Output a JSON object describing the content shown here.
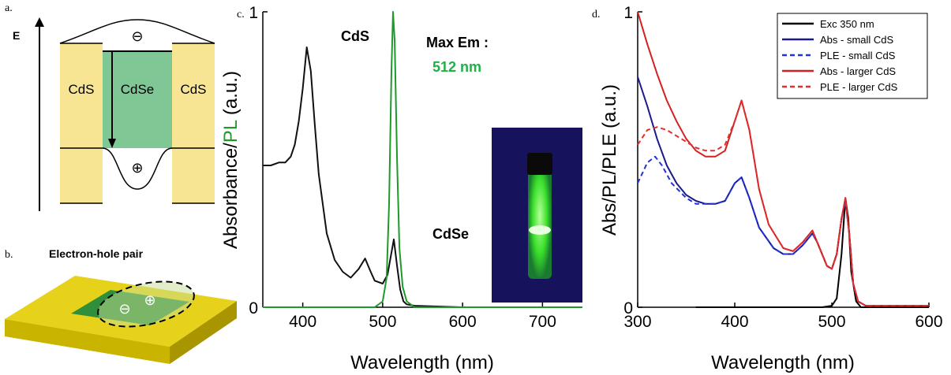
{
  "diagram_a": {
    "label": "a.",
    "axis_label": "E",
    "regions": [
      "CdS",
      "CdSe",
      "CdS"
    ],
    "electron": "⊖",
    "hole": "⊕"
  },
  "diagram_b": {
    "label": "b.",
    "title": "Electron-hole pair",
    "electron": "⊖",
    "hole": "⊕"
  },
  "chart_data": [
    {
      "type": "line",
      "panel_label": "c.",
      "xlabel": "Wavelength (nm)",
      "ylabel": [
        "Absorbance/",
        "PL",
        " (a.u.)"
      ],
      "annotations": [
        "CdS",
        "CdSe",
        "Max Em :",
        "512 nm"
      ],
      "xlim": [
        350,
        750
      ],
      "xticks": [
        400,
        500,
        600,
        700
      ],
      "ylim": [
        0,
        1
      ],
      "yticks": [
        0,
        1
      ],
      "series": [
        {
          "color": "#111111",
          "dash": false,
          "x": [
            350,
            360,
            370,
            378,
            385,
            390,
            395,
            400,
            405,
            410,
            415,
            420,
            430,
            440,
            450,
            460,
            470,
            478,
            485,
            490,
            500,
            506,
            510,
            514,
            518,
            522,
            526,
            530,
            540,
            600,
            750
          ],
          "values": [
            0.48,
            0.48,
            0.49,
            0.49,
            0.51,
            0.55,
            0.63,
            0.74,
            0.88,
            0.8,
            0.62,
            0.45,
            0.25,
            0.16,
            0.12,
            0.1,
            0.13,
            0.165,
            0.12,
            0.09,
            0.08,
            0.11,
            0.17,
            0.23,
            0.14,
            0.06,
            0.02,
            0.01,
            0.005,
            0,
            0
          ]
        },
        {
          "color": "#1e9a2c",
          "dash": false,
          "x": [
            350,
            490,
            500,
            505,
            508,
            511,
            513,
            515,
            518,
            521,
            525,
            530,
            540,
            750
          ],
          "values": [
            0,
            0,
            0.02,
            0.1,
            0.35,
            0.8,
            1.0,
            0.9,
            0.5,
            0.2,
            0.07,
            0.02,
            0,
            0
          ]
        }
      ]
    },
    {
      "type": "line",
      "panel_label": "d.",
      "xlabel": "Wavelength (nm)",
      "ylabel": [
        "Abs/PL/PLE (a.u.)"
      ],
      "xlim": [
        300,
        600
      ],
      "xticks": [
        300,
        400,
        500,
        600
      ],
      "ylim": [
        0,
        1
      ],
      "yticks": [
        0,
        1
      ],
      "legend": "upper right",
      "series": [
        {
          "name": "Exc 350 nm",
          "color": "#000000",
          "dash": false,
          "x": [
            360,
            490,
            500,
            505,
            510,
            514,
            517,
            520,
            525,
            530,
            600
          ],
          "values": [
            0,
            0,
            0.005,
            0.03,
            0.18,
            0.37,
            0.3,
            0.12,
            0.02,
            0,
            0
          ]
        },
        {
          "name": "Abs - small CdS",
          "color": "#1a1a8c",
          "dash": false,
          "x": [
            300,
            310,
            320,
            330,
            340,
            350,
            360,
            370,
            380,
            390,
            400,
            407,
            415,
            425,
            440,
            450,
            460,
            470,
            480,
            485,
            495,
            500,
            505,
            510,
            514,
            518,
            522,
            527,
            535,
            600
          ],
          "values": [
            0.78,
            0.68,
            0.57,
            0.48,
            0.42,
            0.38,
            0.36,
            0.35,
            0.35,
            0.36,
            0.42,
            0.44,
            0.37,
            0.27,
            0.2,
            0.18,
            0.18,
            0.21,
            0.25,
            0.22,
            0.14,
            0.13,
            0.18,
            0.3,
            0.36,
            0.25,
            0.08,
            0.02,
            0.005,
            0.005
          ]
        },
        {
          "name": "PLE - small CdS",
          "color": "#2233dd",
          "dash": true,
          "x": [
            300,
            310,
            318,
            325,
            335,
            350,
            360,
            370,
            380,
            390,
            400,
            407,
            415,
            425,
            440,
            450,
            460,
            470,
            480,
            485,
            495,
            500,
            505,
            510,
            514,
            518,
            522,
            527,
            535,
            600
          ],
          "values": [
            0.42,
            0.49,
            0.51,
            0.48,
            0.42,
            0.37,
            0.35,
            0.35,
            0.35,
            0.36,
            0.42,
            0.44,
            0.37,
            0.27,
            0.2,
            0.18,
            0.18,
            0.21,
            0.25,
            0.22,
            0.14,
            0.13,
            0.18,
            0.3,
            0.36,
            0.25,
            0.08,
            0.02,
            0.005,
            0.005
          ]
        },
        {
          "name": "Abs - larger CdS",
          "color": "#d42020",
          "dash": false,
          "x": [
            300,
            310,
            320,
            330,
            340,
            350,
            360,
            370,
            380,
            390,
            400,
            407,
            415,
            425,
            435,
            450,
            460,
            470,
            480,
            485,
            495,
            500,
            505,
            510,
            514,
            518,
            522,
            527,
            535,
            600
          ],
          "values": [
            1.0,
            0.89,
            0.79,
            0.7,
            0.63,
            0.57,
            0.53,
            0.51,
            0.51,
            0.53,
            0.63,
            0.7,
            0.6,
            0.4,
            0.28,
            0.2,
            0.19,
            0.22,
            0.26,
            0.22,
            0.14,
            0.13,
            0.18,
            0.3,
            0.37,
            0.25,
            0.08,
            0.02,
            0.005,
            0.005
          ]
        },
        {
          "name": "PLE - larger CdS",
          "color": "#e03030",
          "dash": true,
          "x": [
            300,
            310,
            320,
            330,
            340,
            350,
            360,
            370,
            380,
            390,
            400,
            407,
            415,
            425,
            435,
            450,
            460,
            470,
            480,
            485,
            495,
            500,
            505,
            510,
            514,
            518,
            522,
            527,
            535,
            600
          ],
          "values": [
            0.55,
            0.6,
            0.61,
            0.6,
            0.58,
            0.56,
            0.54,
            0.53,
            0.53,
            0.55,
            0.63,
            0.7,
            0.6,
            0.4,
            0.28,
            0.2,
            0.19,
            0.22,
            0.26,
            0.22,
            0.14,
            0.13,
            0.18,
            0.3,
            0.37,
            0.25,
            0.08,
            0.02,
            0.005,
            0.005
          ]
        }
      ]
    }
  ]
}
